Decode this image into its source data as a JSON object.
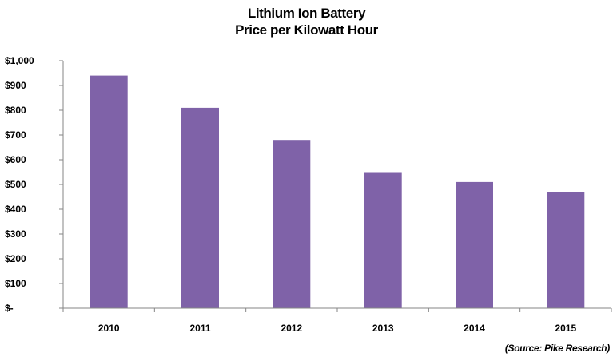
{
  "chart_data": {
    "type": "bar",
    "title": [
      "Lithium Ion Battery",
      "Price per Kilowatt Hour"
    ],
    "categories": [
      "2010",
      "2011",
      "2012",
      "2013",
      "2014",
      "2015"
    ],
    "values": [
      940,
      810,
      680,
      550,
      510,
      470
    ],
    "ylim": [
      0,
      1000
    ],
    "yticks": [
      0,
      100,
      200,
      300,
      400,
      500,
      600,
      700,
      800,
      900,
      1000
    ],
    "ytick_labels": [
      "$-",
      "$100",
      "$200",
      "$300",
      "$400",
      "$500",
      "$600",
      "$700",
      "$800",
      "$900",
      "$1,000"
    ],
    "xlabel": "",
    "ylabel": "",
    "grid": false,
    "legend": "none",
    "bar_color": "#7f62a8",
    "source": "(Source:   Pike Research)"
  }
}
